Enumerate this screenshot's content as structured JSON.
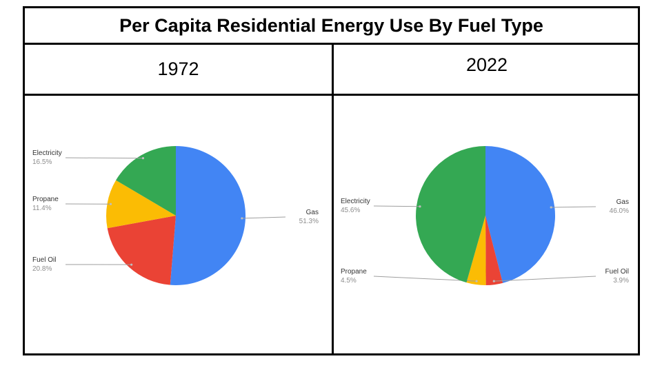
{
  "title": "Per Capita Residential Energy Use By Fuel Type",
  "colors": {
    "Gas": "#4285f4",
    "Fuel Oil": "#ea4335",
    "Propane": "#fbbc04",
    "Electricity": "#34a853"
  },
  "chart_data": [
    {
      "type": "pie",
      "title": "1972",
      "slices": [
        {
          "name": "Gas",
          "value": 51.3,
          "label": "51.3%"
        },
        {
          "name": "Fuel Oil",
          "value": 20.8,
          "label": "20.8%"
        },
        {
          "name": "Propane",
          "value": 11.4,
          "label": "11.4%"
        },
        {
          "name": "Electricity",
          "value": 16.5,
          "label": "16.5%"
        }
      ]
    },
    {
      "type": "pie",
      "title": "2022",
      "slices": [
        {
          "name": "Gas",
          "value": 46.0,
          "label": "46.0%"
        },
        {
          "name": "Fuel Oil",
          "value": 3.9,
          "label": "3.9%"
        },
        {
          "name": "Propane",
          "value": 4.5,
          "label": "4.5%"
        },
        {
          "name": "Electricity",
          "value": 45.6,
          "label": "45.6%"
        }
      ]
    }
  ]
}
